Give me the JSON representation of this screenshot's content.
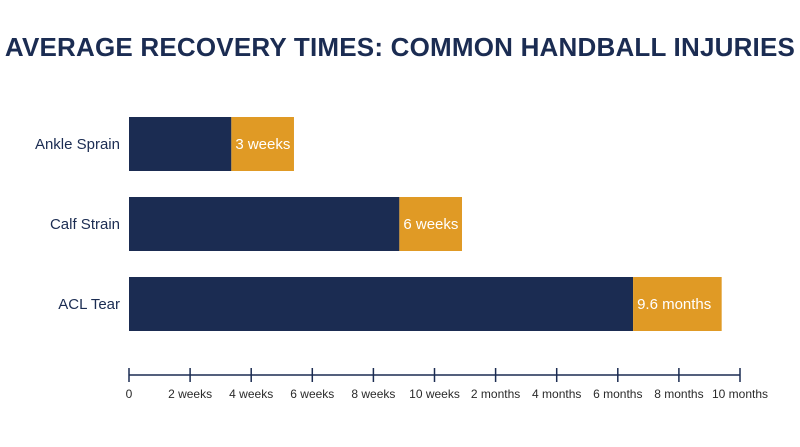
{
  "chart_data": {
    "type": "bar",
    "orientation": "horizontal",
    "stacked": true,
    "title": "AVERAGE RECOVERY TIMES: COMMON HANDBALL INJURIES",
    "categories": [
      "Ankle Sprain",
      "Calf Strain",
      "ACL Tear"
    ],
    "x_ticks": [
      "0",
      "2 weeks",
      "4 weeks",
      "6 weeks",
      "8 weeks",
      "10 weeks",
      "2 months",
      "4 months",
      "6 months",
      "8 months",
      "10 months"
    ],
    "series": [
      {
        "values": [
          3.35,
          8.85,
          16.5
        ],
        "color": "#1b2c52"
      },
      {
        "values": [
          2.05,
          2.05,
          2.9
        ],
        "color": "#e09a25"
      }
    ],
    "data_labels": [
      "3 weeks",
      "6 weeks",
      "9.6 months"
    ],
    "xlim": [
      0,
      20
    ],
    "grid": false,
    "colors": {
      "title": "#1b2c52",
      "axis": "#1b2c52"
    }
  }
}
